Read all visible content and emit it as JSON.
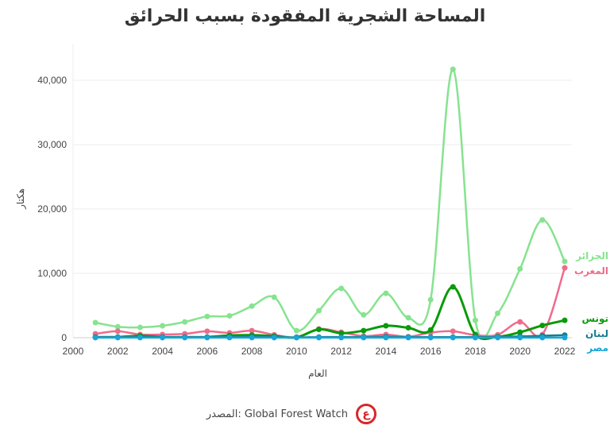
{
  "chart_data": {
    "type": "line",
    "title": "المساحة الشجرية المفقودة بسبب الحرائق",
    "xlabel": "العام",
    "ylabel": "هكتار",
    "xlim": [
      2000,
      2022
    ],
    "ylim": [
      0,
      42000
    ],
    "xticks": [
      "2000",
      "2002",
      "2004",
      "2006",
      "2008",
      "2010",
      "2012",
      "2014",
      "2016",
      "2018",
      "2020",
      "2022"
    ],
    "yticks": [
      "0",
      "10,000",
      "20,000",
      "30,000",
      "40,000"
    ],
    "grid": true,
    "x": [
      2001,
      2002,
      2003,
      2004,
      2005,
      2006,
      2007,
      2008,
      2009,
      2010,
      2011,
      2012,
      2013,
      2014,
      2015,
      2016,
      2017,
      2018,
      2019,
      2020,
      2021,
      2022
    ],
    "series": [
      {
        "name": "الجزائر",
        "color": "#86e38f",
        "values": [
          2350,
          1700,
          1600,
          1850,
          2450,
          3300,
          3400,
          4900,
          6300,
          1100,
          4200,
          7650,
          3550,
          6900,
          3100,
          5900,
          41700,
          2700,
          3800,
          10700,
          18300,
          11850
        ]
      },
      {
        "name": "المغرب",
        "color": "#ef6b8c",
        "values": [
          600,
          1000,
          500,
          500,
          600,
          1000,
          750,
          1100,
          450,
          100,
          1350,
          850,
          250,
          500,
          150,
          800,
          1000,
          400,
          450,
          2450,
          500,
          10850
        ]
      },
      {
        "name": "تونس",
        "color": "#0a9a0a",
        "values": [
          100,
          100,
          300,
          100,
          100,
          100,
          350,
          400,
          250,
          50,
          1300,
          700,
          1100,
          1850,
          1550,
          1200,
          7900,
          500,
          150,
          850,
          1900,
          2700
        ]
      },
      {
        "name": "لبنان",
        "color": "#137d8c",
        "values": [
          100,
          100,
          100,
          100,
          100,
          100,
          100,
          150,
          100,
          50,
          100,
          100,
          100,
          150,
          100,
          100,
          100,
          100,
          100,
          200,
          300,
          400
        ]
      },
      {
        "name": "مصر",
        "color": "#17a5d8",
        "values": [
          20,
          20,
          20,
          20,
          20,
          20,
          20,
          20,
          20,
          20,
          20,
          20,
          20,
          20,
          20,
          20,
          20,
          20,
          20,
          20,
          20,
          20
        ]
      }
    ]
  },
  "source": "المصدر: Global Forest Watch",
  "logo_text": "ع"
}
